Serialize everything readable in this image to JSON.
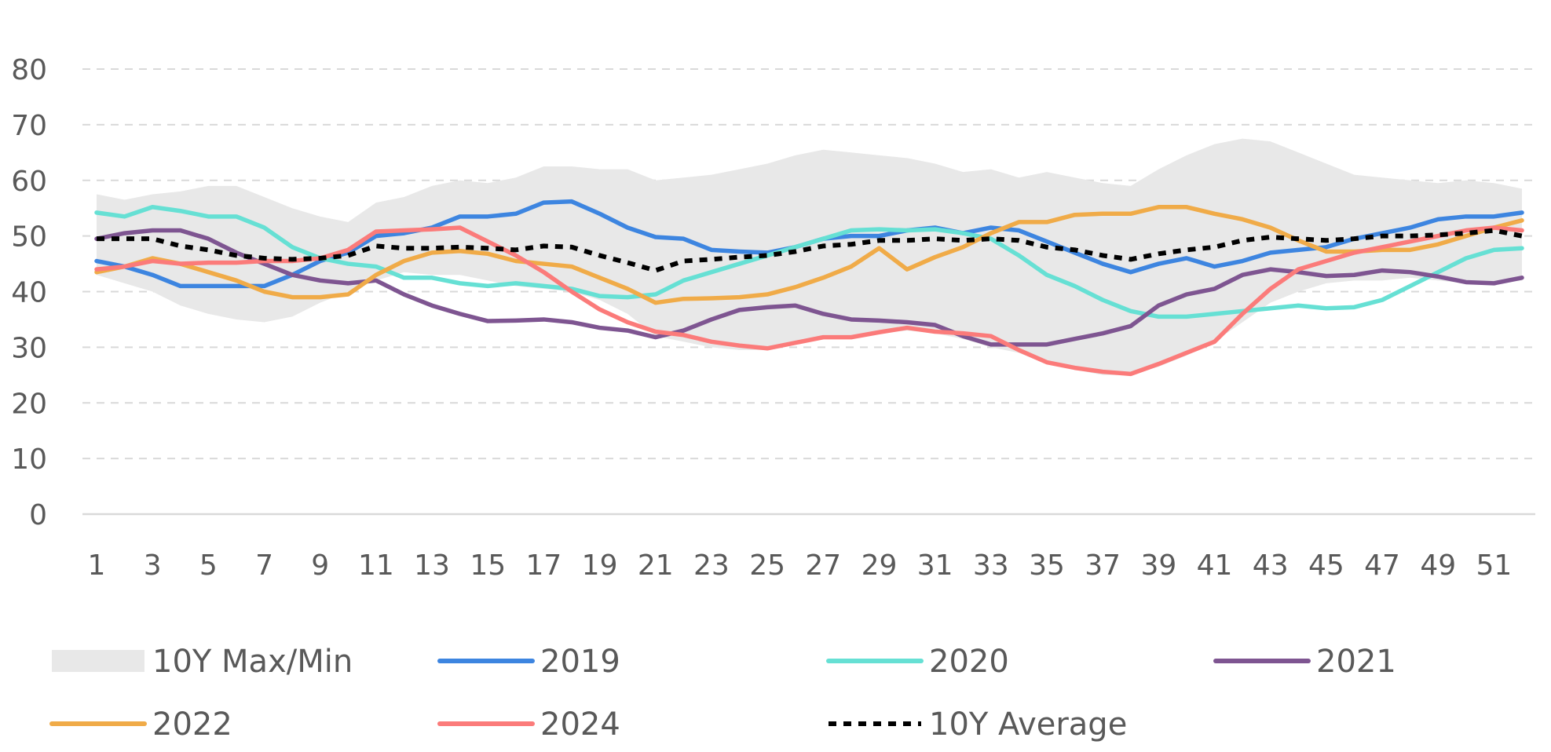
{
  "chart_data": {
    "type": "line",
    "title": "",
    "xlabel": "",
    "ylabel": "",
    "ylim": [
      0,
      80
    ],
    "yticks": [
      0,
      10,
      20,
      30,
      40,
      50,
      60,
      70,
      80
    ],
    "x": [
      1,
      2,
      3,
      4,
      5,
      6,
      7,
      8,
      9,
      10,
      11,
      12,
      13,
      14,
      15,
      16,
      17,
      18,
      19,
      20,
      21,
      22,
      23,
      24,
      25,
      26,
      27,
      28,
      29,
      30,
      31,
      32,
      33,
      34,
      35,
      36,
      37,
      38,
      39,
      40,
      41,
      42,
      43,
      44,
      45,
      46,
      47,
      48,
      49,
      50,
      51,
      52
    ],
    "xticks": [
      1,
      3,
      5,
      7,
      9,
      11,
      13,
      15,
      17,
      19,
      21,
      23,
      25,
      27,
      29,
      31,
      33,
      35,
      37,
      39,
      41,
      43,
      45,
      47,
      49,
      51
    ],
    "grid": true,
    "legend_position": "bottom",
    "band": {
      "name": "10Y Max/Min",
      "color": "#e8e8e8",
      "max": [
        57.5,
        56.5,
        57.5,
        58,
        59,
        59,
        57,
        55,
        53.5,
        52.5,
        56,
        57,
        59,
        60,
        59.5,
        60.5,
        62.5,
        62.5,
        62,
        62,
        60,
        60.5,
        61,
        62,
        63,
        64.5,
        65.5,
        65,
        64.5,
        64,
        63,
        61.5,
        62,
        60.5,
        61.5,
        60.5,
        59.5,
        59,
        62,
        64.5,
        66.5,
        67.5,
        67,
        65,
        63,
        61,
        60.5,
        60,
        59.5,
        60,
        59.5,
        58.5
      ],
      "min": [
        43,
        41.5,
        40,
        37.5,
        36,
        35,
        34.5,
        35.5,
        38,
        40,
        42,
        43.5,
        43,
        43,
        42,
        41,
        40.5,
        40,
        38.5,
        36,
        32,
        31,
        30,
        29.5,
        29.5,
        30.5,
        31.5,
        31.5,
        32.5,
        33,
        32.5,
        31.5,
        30,
        29,
        27,
        26,
        25,
        25,
        26.5,
        28.5,
        31,
        34.5,
        38,
        40,
        41.5,
        42,
        42,
        42.5,
        42,
        41.5,
        41.5,
        42
      ]
    },
    "series": [
      {
        "name": "2019",
        "color": "#3d85e0",
        "dash": false,
        "values": [
          45.5,
          44.5,
          43,
          41,
          41,
          41,
          41,
          43,
          45.5,
          47,
          50,
          50.5,
          51.5,
          53.5,
          53.5,
          54,
          56,
          56.2,
          54,
          51.5,
          49.8,
          49.5,
          47.5,
          47.2,
          47,
          48,
          49.5,
          50,
          50,
          51,
          51.5,
          50.5,
          51.5,
          51,
          49,
          47,
          45,
          43.5,
          45,
          46,
          44.5,
          45.5,
          47,
          47.5,
          48,
          49.5,
          50.5,
          51.5,
          53,
          53.5,
          53.5,
          54.2
        ]
      },
      {
        "name": "2020",
        "color": "#66e0d4",
        "dash": false,
        "values": [
          54.2,
          53.5,
          55.2,
          54.5,
          53.5,
          53.5,
          51.5,
          48,
          46,
          45,
          44.5,
          42.5,
          42.5,
          41.5,
          41,
          41.5,
          41,
          40.5,
          39.2,
          39,
          39.5,
          42,
          43.5,
          45,
          46.5,
          48,
          49.5,
          51,
          51.2,
          51,
          51.2,
          50.5,
          49.5,
          46.5,
          43,
          41,
          38.5,
          36.5,
          35.5,
          35.5,
          36,
          36.5,
          37,
          37.5,
          37,
          37.2,
          38.5,
          41,
          43.5,
          46,
          47.5,
          47.8
        ]
      },
      {
        "name": "2021",
        "color": "#7e5591",
        "dash": false,
        "values": [
          49.5,
          50.5,
          51,
          51,
          49.5,
          47,
          45,
          43,
          42,
          41.5,
          42,
          39.5,
          37.5,
          36,
          34.7,
          34.8,
          35,
          34.5,
          33.5,
          33,
          31.8,
          33,
          35,
          36.7,
          37.2,
          37.5,
          36,
          35,
          34.8,
          34.5,
          34,
          32,
          30.5,
          30.5,
          30.5,
          31.5,
          32.5,
          33.8,
          37.5,
          39.5,
          40.5,
          43,
          44,
          43.5,
          42.8,
          43,
          43.8,
          43.5,
          42.7,
          41.7,
          41.5,
          42.5
        ]
      },
      {
        "name": "2022",
        "color": "#f0ab48",
        "dash": false,
        "values": [
          43.5,
          44.5,
          46,
          45,
          43.5,
          42,
          40,
          39,
          39,
          39.5,
          43,
          45.5,
          47,
          47.3,
          46.8,
          45.5,
          45,
          44.5,
          42.5,
          40.5,
          38,
          38.7,
          38.8,
          39,
          39.5,
          40.8,
          42.5,
          44.5,
          47.8,
          44,
          46.2,
          48,
          50.5,
          52.5,
          52.5,
          53.8,
          54,
          54,
          55.2,
          55.2,
          54,
          53,
          51.5,
          49.2,
          47.2,
          47.2,
          47.5,
          47.5,
          48.5,
          50,
          51.5,
          52.8
        ]
      },
      {
        "name": "2024",
        "color": "#fb7b7a",
        "dash": false,
        "values": [
          44,
          44.5,
          45.5,
          45,
          45.2,
          45.2,
          45.5,
          45.5,
          46,
          47.5,
          50.8,
          51,
          51.2,
          51.5,
          49,
          46.5,
          43.5,
          40,
          36.8,
          34.5,
          32.8,
          32.2,
          31,
          30.3,
          29.8,
          30.8,
          31.8,
          31.8,
          32.7,
          33.5,
          32.8,
          32.5,
          32,
          29.5,
          27.3,
          26.3,
          25.6,
          25.2,
          27,
          29,
          31,
          36,
          40.5,
          44,
          45.5,
          47,
          48,
          49,
          50,
          51,
          51.5,
          51
        ]
      },
      {
        "name": "10Y Average",
        "color": "#000000",
        "dash": true,
        "values": [
          49.5,
          49.5,
          49.5,
          48.2,
          47.5,
          46.5,
          46,
          45.8,
          46,
          46.5,
          48.2,
          47.8,
          47.8,
          48,
          47.8,
          47.5,
          48.2,
          48,
          46.5,
          45.2,
          43.8,
          45.5,
          45.8,
          46.2,
          46.5,
          47.2,
          48.2,
          48.5,
          49.2,
          49.2,
          49.5,
          49.2,
          49.5,
          49.2,
          48,
          47.5,
          46.5,
          45.8,
          46.8,
          47.5,
          48,
          49.2,
          49.8,
          49.5,
          49.2,
          49.5,
          50,
          50,
          50.2,
          50.5,
          51,
          50
        ]
      }
    ]
  }
}
